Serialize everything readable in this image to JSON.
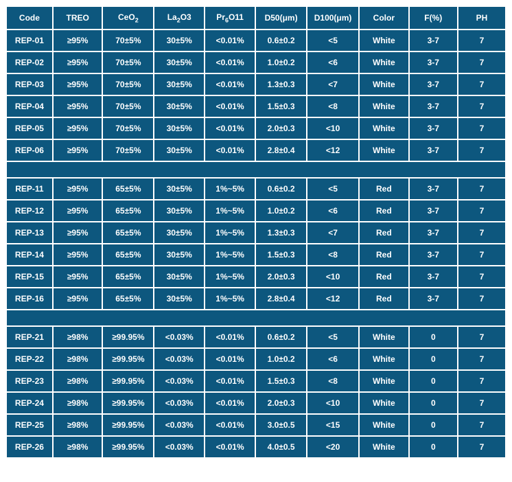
{
  "table": {
    "background_color": "#0d577e",
    "text_color": "#ffffff",
    "cell_gap_color": "#ffffff",
    "font_size": 12,
    "columns": [
      {
        "key": "code",
        "label": "Code"
      },
      {
        "key": "treo",
        "label": "TREO"
      },
      {
        "key": "ceo2",
        "label": "CeO",
        "sub": "2"
      },
      {
        "key": "la2o3",
        "label": "La",
        "sub": "2",
        "suffix": "O3"
      },
      {
        "key": "pr6o11",
        "label": "Pr",
        "sub": "6",
        "suffix": "O11"
      },
      {
        "key": "d50",
        "label": "D50(μm)"
      },
      {
        "key": "d100",
        "label": "D100(μm)"
      },
      {
        "key": "color",
        "label": "Color"
      },
      {
        "key": "f",
        "label": "F(%)"
      },
      {
        "key": "ph",
        "label": "PH"
      }
    ],
    "groups": [
      {
        "rows": [
          {
            "code": "REP-01",
            "treo": "≥95%",
            "ceo2": "70±5%",
            "la2o3": "30±5%",
            "pr6o11": "<0.01%",
            "d50": "0.6±0.2",
            "d100": "<5",
            "color": "White",
            "f": "3-7",
            "ph": "7"
          },
          {
            "code": "REP-02",
            "treo": "≥95%",
            "ceo2": "70±5%",
            "la2o3": "30±5%",
            "pr6o11": "<0.01%",
            "d50": "1.0±0.2",
            "d100": "<6",
            "color": "White",
            "f": "3-7",
            "ph": "7"
          },
          {
            "code": "REP-03",
            "treo": "≥95%",
            "ceo2": "70±5%",
            "la2o3": "30±5%",
            "pr6o11": "<0.01%",
            "d50": "1.3±0.3",
            "d100": "<7",
            "color": "White",
            "f": "3-7",
            "ph": "7"
          },
          {
            "code": "REP-04",
            "treo": "≥95%",
            "ceo2": "70±5%",
            "la2o3": "30±5%",
            "pr6o11": "<0.01%",
            "d50": "1.5±0.3",
            "d100": "<8",
            "color": "White",
            "f": "3-7",
            "ph": "7"
          },
          {
            "code": "REP-05",
            "treo": "≥95%",
            "ceo2": "70±5%",
            "la2o3": "30±5%",
            "pr6o11": "<0.01%",
            "d50": "2.0±0.3",
            "d100": "<10",
            "color": "White",
            "f": "3-7",
            "ph": "7"
          },
          {
            "code": "REP-06",
            "treo": "≥95%",
            "ceo2": "70±5%",
            "la2o3": "30±5%",
            "pr6o11": "<0.01%",
            "d50": "2.8±0.4",
            "d100": "<12",
            "color": "White",
            "f": "3-7",
            "ph": "7"
          }
        ]
      },
      {
        "rows": [
          {
            "code": "REP-11",
            "treo": "≥95%",
            "ceo2": "65±5%",
            "la2o3": "30±5%",
            "pr6o11": "1%~5%",
            "d50": "0.6±0.2",
            "d100": "<5",
            "color": "Red",
            "f": "3-7",
            "ph": "7"
          },
          {
            "code": "REP-12",
            "treo": "≥95%",
            "ceo2": "65±5%",
            "la2o3": "30±5%",
            "pr6o11": "1%~5%",
            "d50": "1.0±0.2",
            "d100": "<6",
            "color": "Red",
            "f": "3-7",
            "ph": "7"
          },
          {
            "code": "REP-13",
            "treo": "≥95%",
            "ceo2": "65±5%",
            "la2o3": "30±5%",
            "pr6o11": "1%~5%",
            "d50": "1.3±0.3",
            "d100": "<7",
            "color": "Red",
            "f": "3-7",
            "ph": "7"
          },
          {
            "code": "REP-14",
            "treo": "≥95%",
            "ceo2": "65±5%",
            "la2o3": "30±5%",
            "pr6o11": "1%~5%",
            "d50": "1.5±0.3",
            "d100": "<8",
            "color": "Red",
            "f": "3-7",
            "ph": "7"
          },
          {
            "code": "REP-15",
            "treo": "≥95%",
            "ceo2": "65±5%",
            "la2o3": "30±5%",
            "pr6o11": "1%~5%",
            "d50": "2.0±0.3",
            "d100": "<10",
            "color": "Red",
            "f": "3-7",
            "ph": "7"
          },
          {
            "code": "REP-16",
            "treo": "≥95%",
            "ceo2": "65±5%",
            "la2o3": "30±5%",
            "pr6o11": "1%~5%",
            "d50": "2.8±0.4",
            "d100": "<12",
            "color": "Red",
            "f": "3-7",
            "ph": "7"
          }
        ]
      },
      {
        "rows": [
          {
            "code": "REP-21",
            "treo": "≥98%",
            "ceo2": "≥99.95%",
            "la2o3": "<0.03%",
            "pr6o11": "<0.01%",
            "d50": "0.6±0.2",
            "d100": "<5",
            "color": "White",
            "f": "0",
            "ph": "7"
          },
          {
            "code": "REP-22",
            "treo": "≥98%",
            "ceo2": "≥99.95%",
            "la2o3": "<0.03%",
            "pr6o11": "<0.01%",
            "d50": "1.0±0.2",
            "d100": "<6",
            "color": "White",
            "f": "0",
            "ph": "7"
          },
          {
            "code": "REP-23",
            "treo": "≥98%",
            "ceo2": "≥99.95%",
            "la2o3": "<0.03%",
            "pr6o11": "<0.01%",
            "d50": "1.5±0.3",
            "d100": "<8",
            "color": "White",
            "f": "0",
            "ph": "7"
          },
          {
            "code": "REP-24",
            "treo": "≥98%",
            "ceo2": "≥99.95%",
            "la2o3": "<0.03%",
            "pr6o11": "<0.01%",
            "d50": "2.0±0.3",
            "d100": "<10",
            "color": "White",
            "f": "0",
            "ph": "7"
          },
          {
            "code": "REP-25",
            "treo": "≥98%",
            "ceo2": "≥99.95%",
            "la2o3": "<0.03%",
            "pr6o11": "<0.01%",
            "d50": "3.0±0.5",
            "d100": "<15",
            "color": "White",
            "f": "0",
            "ph": "7"
          },
          {
            "code": "REP-26",
            "treo": "≥98%",
            "ceo2": "≥99.95%",
            "la2o3": "<0.03%",
            "pr6o11": "<0.01%",
            "d50": "4.0±0.5",
            "d100": "<20",
            "color": "White",
            "f": "0",
            "ph": "7"
          }
        ]
      }
    ]
  }
}
